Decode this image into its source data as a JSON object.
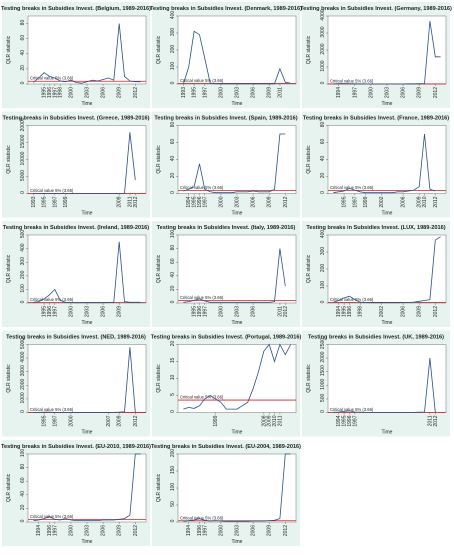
{
  "chart_data": [
    {
      "type": "line",
      "title": "Testing breaks in Subsidies Invest. (Belgium, 1989-2016)",
      "ylabel": "QLR statistic",
      "xlabel": "Time",
      "critical_value": 3.66,
      "critical_label": "Critical value 5% (3.66)",
      "color": "#2b4f8a",
      "critical_color": "#d02020",
      "xlim": [
        1992,
        2014
      ],
      "ylim": [
        0,
        90
      ],
      "yticks": [
        0,
        20,
        40,
        60,
        80
      ],
      "xticks": [
        1995,
        1996,
        1997,
        1998,
        2000,
        2003,
        2006,
        2009,
        2012
      ],
      "x": [
        1993,
        1994,
        1995,
        1996,
        1997,
        1998,
        1999,
        2000,
        2001,
        2002,
        2003,
        2004,
        2005,
        2006,
        2007,
        2008,
        2009,
        2010,
        2011,
        2012,
        2013
      ],
      "values": [
        2,
        8,
        15,
        10,
        8,
        4,
        3,
        5,
        2,
        1,
        3,
        5,
        4,
        6,
        8,
        5,
        80,
        10,
        4,
        3,
        3
      ]
    },
    {
      "type": "line",
      "title": "Testing breaks in Subsidies Invest. (Denmark, 1989-2016)",
      "ylabel": "QLR statistic",
      "xlabel": "Time",
      "critical_value": 3.66,
      "critical_label": "Critical value 5% (3.66)",
      "color": "#2b4f8a",
      "critical_color": "#d02020",
      "xlim": [
        1992,
        2014
      ],
      "ylim": [
        0,
        400
      ],
      "yticks": [
        0,
        100,
        200,
        300,
        400
      ],
      "xticks": [
        1993,
        1995,
        1997,
        2000,
        2003,
        2006,
        2009,
        2011
      ],
      "x": [
        1993,
        1994,
        1995,
        1996,
        1997,
        1998,
        1999,
        2000,
        2001,
        2002,
        2003,
        2004,
        2005,
        2006,
        2007,
        2008,
        2009,
        2010,
        2011,
        2012,
        2013
      ],
      "values": [
        2,
        100,
        310,
        290,
        150,
        5,
        2,
        1,
        1,
        1,
        1,
        1,
        1,
        1,
        1,
        1,
        1,
        1,
        90,
        10,
        5
      ]
    },
    {
      "type": "line",
      "title": "Testing breaks in Subsidies Invest. (Germany, 1989-2016)",
      "ylabel": "QLR statistic",
      "xlabel": "Time",
      "critical_value": 3.66,
      "critical_label": "Critical value 5% (3.66)",
      "color": "#2b4f8a",
      "critical_color": "#d02020",
      "xlim": [
        1992,
        2014
      ],
      "ylim": [
        0,
        4000
      ],
      "yticks": [
        0,
        1000,
        2000,
        3000,
        4000
      ],
      "xticks": [
        1994,
        1997,
        2000,
        2003,
        2006,
        2009,
        2012
      ],
      "x": [
        1993,
        1994,
        1995,
        1996,
        1997,
        1998,
        1999,
        2000,
        2001,
        2002,
        2003,
        2004,
        2005,
        2006,
        2007,
        2008,
        2009,
        2010,
        2011,
        2012,
        2013
      ],
      "values": [
        10,
        20,
        30,
        20,
        10,
        10,
        5,
        5,
        5,
        5,
        5,
        5,
        5,
        5,
        10,
        10,
        20,
        30,
        3700,
        1600,
        1600
      ]
    },
    {
      "type": "line",
      "title": "Testing breaks in Subsidies Invest. (Greece, 1989-2016)",
      "ylabel": "QLR statistic",
      "xlabel": "Time",
      "critical_value": 3.66,
      "critical_label": "Critical value 5% (3.66)",
      "color": "#2b4f8a",
      "critical_color": "#d02020",
      "xlim": [
        1992,
        2014
      ],
      "ylim": [
        0,
        20000
      ],
      "yticks": [
        0,
        5000,
        10000,
        15000,
        20000
      ],
      "xticks": [
        1993,
        1995,
        1997,
        1999,
        2009,
        2011,
        2012
      ],
      "x": [
        1993,
        1994,
        1995,
        1996,
        1997,
        1998,
        1999,
        2000,
        2001,
        2002,
        2003,
        2004,
        2005,
        2006,
        2007,
        2008,
        2009,
        2010,
        2011,
        2012
      ],
      "values": [
        20,
        20,
        30,
        20,
        20,
        10,
        10,
        10,
        10,
        10,
        10,
        10,
        10,
        10,
        10,
        10,
        20,
        50,
        18000,
        4000
      ]
    },
    {
      "type": "line",
      "title": "Testing breaks in Subsidies Invest. (Spain, 1989-2016)",
      "ylabel": "QLR statistic",
      "xlabel": "Time",
      "critical_value": 3.66,
      "critical_label": "Critical value 5% (3.66)",
      "color": "#2b4f8a",
      "critical_color": "#d02020",
      "xlim": [
        1992,
        2014
      ],
      "ylim": [
        0,
        80
      ],
      "yticks": [
        0,
        20,
        40,
        60,
        80
      ],
      "xticks": [
        1994,
        1995,
        1996,
        1997,
        2000,
        2003,
        2006,
        2009,
        2012
      ],
      "x": [
        1993,
        1994,
        1995,
        1996,
        1997,
        1998,
        1999,
        2000,
        2001,
        2002,
        2003,
        2004,
        2005,
        2006,
        2007,
        2008,
        2009,
        2010,
        2011,
        2012
      ],
      "values": [
        3,
        5,
        8,
        35,
        5,
        2,
        1,
        1,
        1,
        1,
        2,
        2,
        2,
        3,
        2,
        2,
        2,
        5,
        70,
        70
      ]
    },
    {
      "type": "line",
      "title": "Testing breaks in Subsidies Invest. (France, 1989-2016)",
      "ylabel": "QLR statistic",
      "xlabel": "Time",
      "critical_value": 3.66,
      "critical_label": "Critical value 5% (3.66)",
      "color": "#2b4f8a",
      "critical_color": "#d02020",
      "xlim": [
        1992,
        2014
      ],
      "ylim": [
        0,
        80
      ],
      "yticks": [
        0,
        20,
        40,
        60,
        80
      ],
      "xticks": [
        1995,
        1997,
        1999,
        2002,
        2006,
        2009,
        2010,
        2012
      ],
      "x": [
        1993,
        1994,
        1995,
        1996,
        1997,
        1998,
        1999,
        2000,
        2001,
        2002,
        2003,
        2004,
        2005,
        2006,
        2007,
        2008,
        2009,
        2010,
        2011,
        2012
      ],
      "values": [
        1,
        2,
        3,
        6,
        4,
        2,
        1,
        1,
        1,
        1,
        1,
        1,
        2,
        2,
        3,
        4,
        8,
        70,
        5,
        3
      ]
    },
    {
      "type": "line",
      "title": "Testing breaks in Subsidies Invest. (Ireland, 1989-2016)",
      "ylabel": "QLR statistic",
      "xlabel": "Time",
      "critical_value": 3.66,
      "critical_label": "Critical value 5% (3.66)",
      "color": "#2b4f8a",
      "critical_color": "#d02020",
      "xlim": [
        1992,
        2014
      ],
      "ylim": [
        0,
        500
      ],
      "yticks": [
        0,
        100,
        200,
        300,
        400,
        500
      ],
      "xticks": [
        1995,
        1996,
        1997,
        2000,
        2003,
        2006,
        2009
      ],
      "x": [
        1993,
        1994,
        1995,
        1996,
        1997,
        1998,
        1999,
        2000,
        2001,
        2002,
        2003,
        2004,
        2005,
        2006,
        2007,
        2008,
        2009,
        2010,
        2011,
        2012,
        2013
      ],
      "values": [
        5,
        10,
        30,
        60,
        100,
        20,
        5,
        3,
        2,
        2,
        2,
        2,
        2,
        2,
        3,
        5,
        450,
        10,
        5,
        5,
        5
      ]
    },
    {
      "type": "line",
      "title": "Testing breaks in Subsidies Invest. (Italy, 1989-2016)",
      "ylabel": "QLR statistic",
      "xlabel": "Time",
      "critical_value": 3.66,
      "critical_label": "Critical value 5% (3.66)",
      "color": "#2b4f8a",
      "critical_color": "#d02020",
      "xlim": [
        1992,
        2014
      ],
      "ylim": [
        0,
        100
      ],
      "yticks": [
        0,
        20,
        40,
        60,
        80,
        100
      ],
      "xticks": [
        1995,
        1996,
        1997,
        2000,
        2003,
        2006,
        2011,
        2012
      ],
      "x": [
        1993,
        1994,
        1995,
        1996,
        1997,
        1998,
        1999,
        2000,
        2001,
        2002,
        2003,
        2004,
        2005,
        2006,
        2007,
        2008,
        2009,
        2010,
        2011,
        2012
      ],
      "values": [
        1,
        2,
        4,
        6,
        3,
        1,
        1,
        1,
        1,
        1,
        1,
        1,
        1,
        1,
        1,
        1,
        1,
        2,
        80,
        25
      ]
    },
    {
      "type": "line",
      "title": "Testing breaks in Subsidies Invest. (LUX, 1989-2016)",
      "ylabel": "QLR statistic",
      "xlabel": "Time",
      "critical_value": 3.66,
      "critical_label": "Critical value 5% (3.66)",
      "color": "#2b4f8a",
      "critical_color": "#d02020",
      "xlim": [
        1992,
        2014
      ],
      "ylim": [
        0,
        400
      ],
      "yticks": [
        0,
        100,
        200,
        300,
        400
      ],
      "xticks": [
        1994,
        1995,
        1996,
        1998,
        2002,
        2006,
        2009,
        2012
      ],
      "x": [
        1993,
        1994,
        1995,
        1996,
        1997,
        1998,
        1999,
        2000,
        2001,
        2002,
        2003,
        2004,
        2005,
        2006,
        2007,
        2008,
        2009,
        2010,
        2011,
        2012,
        2013
      ],
      "values": [
        5,
        15,
        30,
        40,
        20,
        5,
        3,
        2,
        2,
        2,
        2,
        2,
        2,
        3,
        3,
        5,
        10,
        15,
        20,
        370,
        390
      ]
    },
    {
      "type": "line",
      "title": "Testing breaks in Subsidies Invest. (NED, 1989-2016)",
      "ylabel": "QLR statistic",
      "xlabel": "Time",
      "critical_value": 3.66,
      "critical_label": "Critical value 5% (3.66)",
      "color": "#2b4f8a",
      "critical_color": "#d02020",
      "xlim": [
        1992,
        2014
      ],
      "ylim": [
        0,
        5000
      ],
      "yticks": [
        0,
        1000,
        2000,
        3000,
        4000,
        5000
      ],
      "xticks": [
        1995,
        1997,
        2000,
        2007,
        2009,
        2012
      ],
      "x": [
        1993,
        1994,
        1995,
        1996,
        1997,
        1998,
        1999,
        2000,
        2001,
        2002,
        2003,
        2004,
        2005,
        2006,
        2007,
        2008,
        2009,
        2010,
        2011,
        2012
      ],
      "values": [
        10,
        10,
        20,
        20,
        10,
        10,
        10,
        10,
        10,
        10,
        10,
        10,
        10,
        10,
        10,
        10,
        20,
        50,
        4800,
        20
      ]
    },
    {
      "type": "line",
      "title": "Testing breaks in Subsidies Invest. (Portugal, 1989-2016)",
      "ylabel": "QLR statistic",
      "xlabel": "Time",
      "critical_value": 3.66,
      "critical_label": "Critical value 5% (3.66)",
      "color": "#2b4f8a",
      "critical_color": "#d02020",
      "xlim": [
        1992,
        2014
      ],
      "ylim": [
        0,
        20
      ],
      "yticks": [
        0,
        5,
        10,
        15,
        20
      ],
      "xticks": [
        1999,
        2008,
        2009,
        2010,
        2011
      ],
      "x": [
        1993,
        1994,
        1995,
        1996,
        1997,
        1998,
        1999,
        2000,
        2001,
        2002,
        2003,
        2004,
        2005,
        2006,
        2007,
        2008,
        2009,
        2010,
        2011,
        2012,
        2013
      ],
      "values": [
        1,
        1.5,
        1.2,
        2,
        4,
        5,
        4,
        3,
        1,
        1,
        1,
        2,
        3,
        7,
        12,
        18,
        20,
        15,
        20,
        17,
        20
      ]
    },
    {
      "type": "line",
      "title": "Testing breaks in Subsidies Invest. (UK, 1989-2016)",
      "ylabel": "QLR statistic",
      "xlabel": "Time",
      "critical_value": 3.66,
      "critical_label": "Critical value 5% (3.66)",
      "color": "#2b4f8a",
      "critical_color": "#d02020",
      "xlim": [
        1992,
        2014
      ],
      "ylim": [
        0,
        2500
      ],
      "yticks": [
        0,
        500,
        1000,
        1500,
        2000,
        2500
      ],
      "xticks": [
        1994,
        1995,
        1996,
        1997,
        2011,
        2012
      ],
      "x": [
        1993,
        1994,
        1995,
        1996,
        1997,
        1998,
        1999,
        2000,
        2001,
        2002,
        2003,
        2004,
        2005,
        2006,
        2007,
        2008,
        2009,
        2010,
        2011,
        2012
      ],
      "values": [
        10,
        20,
        40,
        60,
        20,
        10,
        5,
        5,
        5,
        5,
        5,
        5,
        5,
        5,
        5,
        5,
        10,
        20,
        2000,
        10
      ]
    },
    {
      "type": "line",
      "title": "Testing breaks in Subsidies Invest. (EU-2010, 1989-2016)",
      "ylabel": "QLR statistic",
      "xlabel": "Time",
      "critical_value": 3.66,
      "critical_label": "Critical value 5% (3.66)",
      "color": "#2b4f8a",
      "critical_color": "#d02020",
      "xlim": [
        1992,
        2014
      ],
      "ylim": [
        0,
        100
      ],
      "yticks": [
        0,
        20,
        40,
        60,
        80,
        100
      ],
      "xticks": [
        1994,
        1996,
        1997,
        2000,
        2003,
        2006,
        2009,
        2012
      ],
      "x": [
        1993,
        1994,
        1995,
        1996,
        1997,
        1998,
        1999,
        2000,
        2001,
        2002,
        2003,
        2004,
        2005,
        2006,
        2007,
        2008,
        2009,
        2010,
        2011,
        2012,
        2013
      ],
      "values": [
        2,
        3,
        5,
        8,
        4,
        3,
        5,
        3,
        2,
        2,
        2,
        2,
        2,
        3,
        3,
        3,
        4,
        5,
        10,
        100,
        100
      ]
    },
    {
      "type": "line",
      "title": "Testing breaks in Subsidies Invest. (EU-2004, 1989-2016)",
      "ylabel": "QLR statistic",
      "xlabel": "Time",
      "critical_value": 3.66,
      "critical_label": "Critical value 5% (3.66)",
      "color": "#2b4f8a",
      "critical_color": "#d02020",
      "xlim": [
        1992,
        2014
      ],
      "ylim": [
        0,
        200
      ],
      "yticks": [
        0,
        50,
        100,
        150,
        200
      ],
      "xticks": [
        1994,
        1996,
        1997,
        2000,
        2003,
        2006,
        2009,
        2012
      ],
      "x": [
        1993,
        1994,
        1995,
        1996,
        1997,
        1998,
        1999,
        2000,
        2001,
        2002,
        2003,
        2004,
        2005,
        2006,
        2007,
        2008,
        2009,
        2010,
        2011,
        2012,
        2013
      ],
      "values": [
        2,
        4,
        6,
        10,
        5,
        3,
        4,
        3,
        2,
        2,
        2,
        2,
        2,
        3,
        3,
        3,
        4,
        5,
        10,
        200,
        200
      ]
    }
  ]
}
